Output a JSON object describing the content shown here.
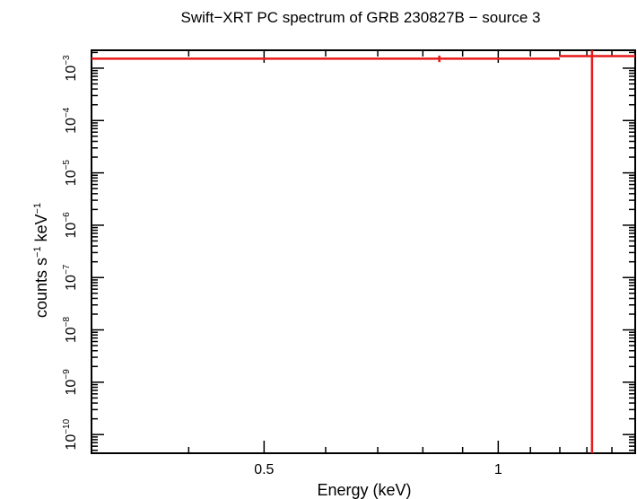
{
  "chart_data": {
    "type": "scatter",
    "title": "Swift−XRT PC spectrum of GRB 230827B − source 3",
    "xlabel": "Energy (keV)",
    "ylabel": {
      "text1": "counts s",
      "sup1": "−1",
      "text2": " keV",
      "sup2": "−1"
    },
    "x_scale": "log",
    "y_scale": "log",
    "xlim": [
      0.3,
      1.5
    ],
    "ylim": [
      4.4e-11,
      0.0022
    ],
    "x_ticks": [
      {
        "value": 0.5,
        "label": "0.5"
      },
      {
        "value": 1,
        "label": "1"
      }
    ],
    "y_ticks": [
      {
        "exp": -3,
        "label": "10",
        "sup": "−3"
      },
      {
        "exp": -4,
        "label": "10",
        "sup": "−4"
      },
      {
        "exp": -5,
        "label": "10",
        "sup": "−5"
      },
      {
        "exp": -6,
        "label": "10",
        "sup": "−6"
      },
      {
        "exp": -7,
        "label": "10",
        "sup": "−7"
      },
      {
        "exp": -8,
        "label": "10",
        "sup": "−8"
      },
      {
        "exp": -9,
        "label": "10",
        "sup": "−9"
      },
      {
        "exp": -10,
        "label": "10",
        "sup": "−10"
      }
    ],
    "series": [
      {
        "color": "#e8191b",
        "points": [
          {
            "x": 0.84,
            "xlo": 0.3,
            "xhi": 1.2,
            "y": 0.00152,
            "ylo": 0.00131,
            "yhi": 0.00174
          },
          {
            "x": 1.32,
            "xlo": 1.2,
            "xhi": 1.5,
            "y": 0.0017,
            "ylo": 4.4e-11,
            "yhi": 0.0022
          }
        ]
      }
    ],
    "grid": false
  }
}
